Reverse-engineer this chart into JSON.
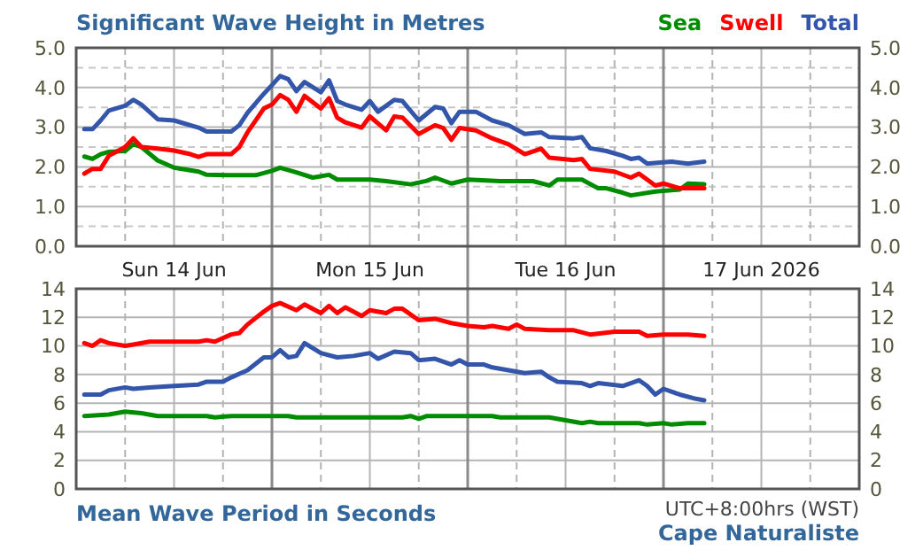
{
  "chart_data": [
    {
      "type": "line",
      "title": "Significant Wave Height in Metres",
      "legend": "top right",
      "grid": true,
      "xlim": [
        "2026-06-14T00:00",
        "2026-06-18T00:00"
      ],
      "xticks": [
        {
          "value": "2026-06-14T06:00",
          "label": null
        },
        {
          "value": "2026-06-14T12:00",
          "label": "Sun 14 Jun"
        },
        {
          "value": "2026-06-14T18:00",
          "label": null
        },
        {
          "value": "2026-06-15T00:00",
          "label": null
        },
        {
          "value": "2026-06-15T06:00",
          "label": null
        },
        {
          "value": "2026-06-15T12:00",
          "label": "Mon 15 Jun"
        },
        {
          "value": "2026-06-15T18:00",
          "label": null
        },
        {
          "value": "2026-06-16T00:00",
          "label": null
        },
        {
          "value": "2026-06-16T06:00",
          "label": null
        },
        {
          "value": "2026-06-16T12:00",
          "label": "Tue 16 Jun"
        },
        {
          "value": "2026-06-16T18:00",
          "label": null
        },
        {
          "value": "2026-06-17T00:00",
          "label": null
        },
        {
          "value": "2026-06-17T06:00",
          "label": null
        },
        {
          "value": "2026-06-17T12:00",
          "label": "17 Jun 2026"
        },
        {
          "value": "2026-06-17T18:00",
          "label": null
        }
      ],
      "ylim": [
        0,
        5
      ],
      "yticks": [
        {
          "value": 0,
          "label": "0.0"
        },
        {
          "value": 0.5,
          "label": null
        },
        {
          "value": 1,
          "label": "1.0"
        },
        {
          "value": 1.5,
          "label": null
        },
        {
          "value": 2,
          "label": "2.0"
        },
        {
          "value": 2.5,
          "label": null
        },
        {
          "value": 3,
          "label": "3.0"
        },
        {
          "value": 3.5,
          "label": null
        },
        {
          "value": 4,
          "label": "4.0"
        },
        {
          "value": 4.5,
          "label": null
        },
        {
          "value": 5,
          "label": "5.0"
        }
      ],
      "y2lim": [
        0,
        5
      ],
      "y2ticks": [
        {
          "value": 0,
          "label": "0.0"
        },
        {
          "value": 1,
          "label": "1.0"
        },
        {
          "value": 2,
          "label": "2.0"
        },
        {
          "value": 3,
          "label": "3.0"
        },
        {
          "value": 4,
          "label": "4.0"
        },
        {
          "value": 5,
          "label": "5.0"
        }
      ],
      "series": [
        {
          "name": "Sea",
          "color": "#008c00",
          "x": [
            "2026-06-14T01:00",
            "2026-06-14T02:00",
            "2026-06-14T03:00",
            "2026-06-14T04:00",
            "2026-06-14T06:00",
            "2026-06-14T07:00",
            "2026-06-14T08:00",
            "2026-06-14T10:00",
            "2026-06-14T12:00",
            "2026-06-14T15:00",
            "2026-06-14T16:00",
            "2026-06-14T19:00",
            "2026-06-14T22:00",
            "2026-06-15T00:00",
            "2026-06-15T01:00",
            "2026-06-15T03:00",
            "2026-06-15T05:00",
            "2026-06-15T07:00",
            "2026-06-15T08:00",
            "2026-06-15T12:00",
            "2026-06-15T14:00",
            "2026-06-15T17:00",
            "2026-06-15T19:00",
            "2026-06-15T20:00",
            "2026-06-15T22:00",
            "2026-06-16T00:00",
            "2026-06-16T04:00",
            "2026-06-16T08:00",
            "2026-06-16T10:00",
            "2026-06-16T11:00",
            "2026-06-16T14:00",
            "2026-06-16T16:00",
            "2026-06-16T17:00",
            "2026-06-16T19:00",
            "2026-06-16T20:00",
            "2026-06-16T23:00",
            "2026-06-17T02:00",
            "2026-06-17T03:00",
            "2026-06-17T05:00"
          ],
          "values": [
            2.26,
            2.2,
            2.32,
            2.38,
            2.4,
            2.57,
            2.5,
            2.16,
            1.98,
            1.88,
            1.8,
            1.79,
            1.79,
            1.9,
            1.98,
            1.86,
            1.73,
            1.8,
            1.68,
            1.68,
            1.64,
            1.56,
            1.65,
            1.73,
            1.58,
            1.68,
            1.64,
            1.64,
            1.53,
            1.68,
            1.68,
            1.46,
            1.46,
            1.35,
            1.28,
            1.38,
            1.43,
            1.58,
            1.56
          ]
        },
        {
          "name": "Swell",
          "color": "#ff0000",
          "x": [
            "2026-06-14T01:00",
            "2026-06-14T02:00",
            "2026-06-14T03:00",
            "2026-06-14T04:00",
            "2026-06-14T06:00",
            "2026-06-14T07:00",
            "2026-06-14T08:00",
            "2026-06-14T10:00",
            "2026-06-14T12:00",
            "2026-06-14T14:00",
            "2026-06-14T15:00",
            "2026-06-14T16:00",
            "2026-06-14T19:00",
            "2026-06-14T20:00",
            "2026-06-14T21:00",
            "2026-06-14T23:00",
            "2026-06-15T00:00",
            "2026-06-15T01:00",
            "2026-06-15T02:00",
            "2026-06-15T03:00",
            "2026-06-15T04:00",
            "2026-06-15T06:00",
            "2026-06-15T07:00",
            "2026-06-15T08:00",
            "2026-06-15T09:00",
            "2026-06-15T11:00",
            "2026-06-15T12:00",
            "2026-06-15T14:00",
            "2026-06-15T15:00",
            "2026-06-15T16:00",
            "2026-06-15T18:00",
            "2026-06-15T20:00",
            "2026-06-15T21:00",
            "2026-06-15T22:00",
            "2026-06-15T23:00",
            "2026-06-16T01:00",
            "2026-06-16T03:00",
            "2026-06-16T05:00",
            "2026-06-16T07:00",
            "2026-06-16T09:00",
            "2026-06-16T10:00",
            "2026-06-16T13:00",
            "2026-06-16T14:00",
            "2026-06-16T15:00",
            "2026-06-16T18:00",
            "2026-06-16T20:00",
            "2026-06-16T21:00",
            "2026-06-16T23:00",
            "2026-06-17T00:00",
            "2026-06-17T02:00",
            "2026-06-17T05:00"
          ],
          "values": [
            1.83,
            1.95,
            1.95,
            2.28,
            2.5,
            2.72,
            2.5,
            2.46,
            2.41,
            2.32,
            2.25,
            2.32,
            2.32,
            2.5,
            2.87,
            3.47,
            3.57,
            3.81,
            3.69,
            3.39,
            3.79,
            3.47,
            3.73,
            3.24,
            3.12,
            2.99,
            3.27,
            2.92,
            3.27,
            3.24,
            2.83,
            3.05,
            2.98,
            2.68,
            2.98,
            2.92,
            2.72,
            2.57,
            2.32,
            2.46,
            2.23,
            2.17,
            2.2,
            1.95,
            1.88,
            1.73,
            1.83,
            1.53,
            1.58,
            1.46,
            1.46
          ]
        },
        {
          "name": "Total",
          "color": "#3355aa",
          "x": [
            "2026-06-14T01:00",
            "2026-06-14T02:00",
            "2026-06-14T03:00",
            "2026-06-14T04:00",
            "2026-06-14T06:00",
            "2026-06-14T07:00",
            "2026-06-14T08:00",
            "2026-06-14T10:00",
            "2026-06-14T12:00",
            "2026-06-14T15:00",
            "2026-06-14T16:00",
            "2026-06-14T19:00",
            "2026-06-14T20:00",
            "2026-06-14T21:00",
            "2026-06-14T23:00",
            "2026-06-15T00:00",
            "2026-06-15T01:00",
            "2026-06-15T02:00",
            "2026-06-15T03:00",
            "2026-06-15T04:00",
            "2026-06-15T06:00",
            "2026-06-15T07:00",
            "2026-06-15T08:00",
            "2026-06-15T09:00",
            "2026-06-15T11:00",
            "2026-06-15T12:00",
            "2026-06-15T13:00",
            "2026-06-15T15:00",
            "2026-06-15T16:00",
            "2026-06-15T18:00",
            "2026-06-15T20:00",
            "2026-06-15T21:00",
            "2026-06-15T22:00",
            "2026-06-15T23:00",
            "2026-06-16T01:00",
            "2026-06-16T03:00",
            "2026-06-16T05:00",
            "2026-06-16T07:00",
            "2026-06-16T09:00",
            "2026-06-16T10:00",
            "2026-06-16T13:00",
            "2026-06-16T14:00",
            "2026-06-16T15:00",
            "2026-06-16T17:00",
            "2026-06-16T19:00",
            "2026-06-16T20:00",
            "2026-06-16T21:00",
            "2026-06-16T22:00",
            "2026-06-17T01:00",
            "2026-06-17T03:00",
            "2026-06-17T05:00"
          ],
          "values": [
            2.95,
            2.95,
            3.17,
            3.42,
            3.54,
            3.69,
            3.57,
            3.2,
            3.17,
            2.99,
            2.89,
            2.89,
            3.05,
            3.36,
            3.84,
            4.06,
            4.29,
            4.21,
            3.91,
            4.14,
            3.88,
            4.18,
            3.66,
            3.57,
            3.44,
            3.66,
            3.39,
            3.69,
            3.66,
            3.17,
            3.51,
            3.47,
            3.1,
            3.39,
            3.39,
            3.17,
            3.05,
            2.83,
            2.87,
            2.75,
            2.72,
            2.75,
            2.47,
            2.4,
            2.28,
            2.2,
            2.23,
            2.08,
            2.13,
            2.08,
            2.13
          ]
        }
      ]
    },
    {
      "type": "line",
      "title": "Mean Wave Period in Seconds",
      "grid": true,
      "tick_labels": "y",
      "annotations": [
        "UTC+8:00hrs (WST)",
        "Cape Naturaliste"
      ],
      "xlim": [
        "2026-06-14T00:00",
        "2026-06-18T00:00"
      ],
      "xticks": [
        {
          "value": "2026-06-14T06:00",
          "label": null
        },
        {
          "value": "2026-06-14T12:00",
          "label": null
        },
        {
          "value": "2026-06-14T18:00",
          "label": null
        },
        {
          "value": "2026-06-15T00:00",
          "label": null
        },
        {
          "value": "2026-06-15T06:00",
          "label": null
        },
        {
          "value": "2026-06-15T12:00",
          "label": null
        },
        {
          "value": "2026-06-15T18:00",
          "label": null
        },
        {
          "value": "2026-06-16T00:00",
          "label": null
        },
        {
          "value": "2026-06-16T06:00",
          "label": null
        },
        {
          "value": "2026-06-16T12:00",
          "label": null
        },
        {
          "value": "2026-06-16T18:00",
          "label": null
        },
        {
          "value": "2026-06-17T00:00",
          "label": null
        },
        {
          "value": "2026-06-17T06:00",
          "label": null
        },
        {
          "value": "2026-06-17T12:00",
          "label": null
        },
        {
          "value": "2026-06-17T18:00",
          "label": null
        }
      ],
      "ylim": [
        0,
        14
      ],
      "yticks": [
        0,
        2,
        4,
        6,
        8,
        10,
        12,
        14
      ],
      "y2lim": [
        0,
        14
      ],
      "y2ticks": [
        0,
        2,
        4,
        6,
        8,
        10,
        12,
        14
      ],
      "series": [
        {
          "color": "#008c00",
          "x": [
            "2026-06-14T01:00",
            "2026-06-14T04:00",
            "2026-06-14T06:00",
            "2026-06-14T08:00",
            "2026-06-14T10:00",
            "2026-06-14T16:00",
            "2026-06-14T17:00",
            "2026-06-14T19:00",
            "2026-06-15T02:00",
            "2026-06-15T03:00",
            "2026-06-15T16:00",
            "2026-06-15T17:00",
            "2026-06-15T18:00",
            "2026-06-15T19:00",
            "2026-06-16T03:00",
            "2026-06-16T04:00",
            "2026-06-16T10:00",
            "2026-06-16T12:00",
            "2026-06-16T14:00",
            "2026-06-16T15:00",
            "2026-06-16T16:00",
            "2026-06-16T21:00",
            "2026-06-16T22:00",
            "2026-06-17T00:00",
            "2026-06-17T01:00",
            "2026-06-17T03:00",
            "2026-06-17T05:00"
          ],
          "values": [
            5.1,
            5.2,
            5.4,
            5.3,
            5.1,
            5.1,
            5,
            5.1,
            5.1,
            5,
            5,
            5.1,
            4.9,
            5.1,
            5.1,
            5,
            5,
            4.8,
            4.6,
            4.7,
            4.6,
            4.6,
            4.5,
            4.6,
            4.5,
            4.6,
            4.6
          ]
        },
        {
          "color": "#ff0000",
          "x": [
            "2026-06-14T01:00",
            "2026-06-14T02:00",
            "2026-06-14T03:00",
            "2026-06-14T04:00",
            "2026-06-14T06:00",
            "2026-06-14T07:00",
            "2026-06-14T09:00",
            "2026-06-14T15:00",
            "2026-06-14T16:00",
            "2026-06-14T17:00",
            "2026-06-14T19:00",
            "2026-06-14T20:00",
            "2026-06-14T21:00",
            "2026-06-14T23:00",
            "2026-06-15T00:00",
            "2026-06-15T01:00",
            "2026-06-15T03:00",
            "2026-06-15T04:00",
            "2026-06-15T06:00",
            "2026-06-15T07:00",
            "2026-06-15T08:00",
            "2026-06-15T09:00",
            "2026-06-15T11:00",
            "2026-06-15T12:00",
            "2026-06-15T14:00",
            "2026-06-15T15:00",
            "2026-06-15T16:00",
            "2026-06-15T18:00",
            "2026-06-15T20:00",
            "2026-06-15T22:00",
            "2026-06-16T00:00",
            "2026-06-16T02:00",
            "2026-06-16T03:00",
            "2026-06-16T05:00",
            "2026-06-16T06:00",
            "2026-06-16T07:00",
            "2026-06-16T10:00",
            "2026-06-16T13:00",
            "2026-06-16T15:00",
            "2026-06-16T18:00",
            "2026-06-16T21:00",
            "2026-06-16T22:00",
            "2026-06-17T00:00",
            "2026-06-17T03:00",
            "2026-06-17T05:00"
          ],
          "values": [
            10.2,
            10,
            10.4,
            10.2,
            10,
            10.1,
            10.3,
            10.3,
            10.4,
            10.3,
            10.8,
            10.9,
            11.5,
            12.4,
            12.8,
            13,
            12.5,
            12.9,
            12.3,
            12.8,
            12.3,
            12.7,
            12.1,
            12.5,
            12.3,
            12.6,
            12.6,
            11.8,
            11.9,
            11.6,
            11.4,
            11.3,
            11.4,
            11.2,
            11.5,
            11.2,
            11.1,
            11.1,
            10.8,
            11,
            11,
            10.7,
            10.8,
            10.8,
            10.7
          ]
        },
        {
          "color": "#3355aa",
          "x": [
            "2026-06-14T01:00",
            "2026-06-14T03:00",
            "2026-06-14T04:00",
            "2026-06-14T06:00",
            "2026-06-14T07:00",
            "2026-06-14T09:00",
            "2026-06-14T12:00",
            "2026-06-14T15:00",
            "2026-06-14T16:00",
            "2026-06-14T18:00",
            "2026-06-14T19:00",
            "2026-06-14T21:00",
            "2026-06-14T23:00",
            "2026-06-15T00:00",
            "2026-06-15T01:00",
            "2026-06-15T02:00",
            "2026-06-15T03:00",
            "2026-06-15T04:00",
            "2026-06-15T06:00",
            "2026-06-15T08:00",
            "2026-06-15T10:00",
            "2026-06-15T12:00",
            "2026-06-15T13:00",
            "2026-06-15T15:00",
            "2026-06-15T17:00",
            "2026-06-15T18:00",
            "2026-06-15T20:00",
            "2026-06-15T22:00",
            "2026-06-15T23:00",
            "2026-06-16T00:00",
            "2026-06-16T02:00",
            "2026-06-16T03:00",
            "2026-06-16T05:00",
            "2026-06-16T07:00",
            "2026-06-16T09:00",
            "2026-06-16T10:00",
            "2026-06-16T11:00",
            "2026-06-16T14:00",
            "2026-06-16T15:00",
            "2026-06-16T16:00",
            "2026-06-16T19:00",
            "2026-06-16T21:00",
            "2026-06-16T22:00",
            "2026-06-16T23:00",
            "2026-06-17T00:00",
            "2026-06-17T02:00",
            "2026-06-17T04:00",
            "2026-06-17T05:00"
          ],
          "values": [
            6.6,
            6.6,
            6.9,
            7.1,
            7,
            7.1,
            7.2,
            7.3,
            7.5,
            7.5,
            7.8,
            8.3,
            9.2,
            9.2,
            9.7,
            9.2,
            9.3,
            10.2,
            9.5,
            9.2,
            9.3,
            9.5,
            9.1,
            9.6,
            9.5,
            9,
            9.1,
            8.7,
            9,
            8.7,
            8.7,
            8.5,
            8.3,
            8.1,
            8.2,
            7.8,
            7.5,
            7.4,
            7.2,
            7.4,
            7.2,
            7.6,
            7.2,
            6.6,
            7,
            6.6,
            6.3,
            6.2
          ]
        }
      ]
    }
  ]
}
